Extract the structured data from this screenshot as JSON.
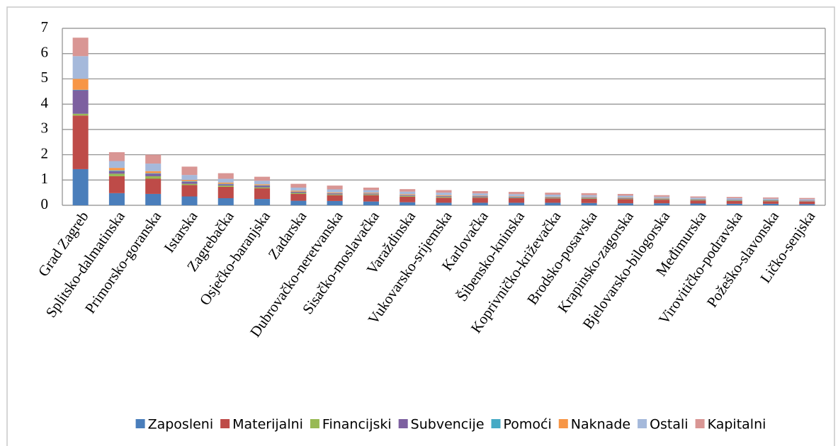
{
  "chart_data": {
    "type": "stacked-bar",
    "categories": [
      "Grad Zagreb",
      "Splitsko-dalmatinska",
      "Primorsko-goranska",
      "Istarska",
      "Zagrebačka",
      "Osječko-baranjska",
      "Zadarska",
      "Dubrovačko-neretvanska",
      "Sisačko-moslavačka",
      "Varaždinska",
      "Vukovarsko-srijemska",
      "Karlovačka",
      "Šibensko-kninska",
      "Koprivničko-križevačka",
      "Brodsko-posavska",
      "Krapinsko-zagorska",
      "Bjelovarsko-bilogorska",
      "Međimurska",
      "Virovitičko-podravska",
      "Požeško-slavonska",
      "Ličko-senjska"
    ],
    "series": [
      {
        "name": "Zaposleni",
        "color": "#4a7ebb",
        "values": [
          1.43,
          0.48,
          0.45,
          0.35,
          0.28,
          0.25,
          0.18,
          0.17,
          0.15,
          0.12,
          0.1,
          0.1,
          0.1,
          0.1,
          0.09,
          0.08,
          0.08,
          0.07,
          0.06,
          0.06,
          0.05
        ]
      },
      {
        "name": "Materijalni",
        "color": "#be4b48",
        "values": [
          2.12,
          0.67,
          0.6,
          0.45,
          0.45,
          0.42,
          0.27,
          0.23,
          0.25,
          0.22,
          0.2,
          0.2,
          0.18,
          0.17,
          0.17,
          0.16,
          0.14,
          0.12,
          0.11,
          0.1,
          0.1
        ]
      },
      {
        "name": "Financijski",
        "color": "#98b954",
        "values": [
          0.07,
          0.1,
          0.1,
          0.05,
          0.05,
          0.04,
          0.04,
          0.03,
          0.03,
          0.03,
          0.03,
          0.02,
          0.02,
          0.02,
          0.02,
          0.02,
          0.02,
          0.02,
          0.02,
          0.02,
          0.01
        ]
      },
      {
        "name": "Subvencije",
        "color": "#7d60a0",
        "values": [
          0.93,
          0.1,
          0.1,
          0.08,
          0.05,
          0.06,
          0.04,
          0.04,
          0.03,
          0.03,
          0.03,
          0.03,
          0.03,
          0.02,
          0.02,
          0.02,
          0.02,
          0.02,
          0.02,
          0.02,
          0.02
        ]
      },
      {
        "name": "Pomoći",
        "color": "#46aac5",
        "values": [
          0.02,
          0.03,
          0.02,
          0.02,
          0.02,
          0.02,
          0.01,
          0.01,
          0.01,
          0.01,
          0.01,
          0.01,
          0.01,
          0.01,
          0.01,
          0.01,
          0.01,
          0.01,
          0.01,
          0.01,
          0.01
        ]
      },
      {
        "name": "Naknade",
        "color": "#f79646",
        "values": [
          0.43,
          0.1,
          0.08,
          0.05,
          0.05,
          0.04,
          0.04,
          0.03,
          0.03,
          0.03,
          0.03,
          0.02,
          0.02,
          0.02,
          0.02,
          0.02,
          0.02,
          0.01,
          0.01,
          0.01,
          0.01
        ]
      },
      {
        "name": "Ostali",
        "color": "#a5b9db",
        "values": [
          0.9,
          0.27,
          0.3,
          0.2,
          0.15,
          0.14,
          0.12,
          0.12,
          0.1,
          0.1,
          0.1,
          0.09,
          0.08,
          0.08,
          0.07,
          0.07,
          0.05,
          0.05,
          0.05,
          0.04,
          0.04
        ]
      },
      {
        "name": "Kapitalni",
        "color": "#d99694",
        "values": [
          0.73,
          0.35,
          0.35,
          0.33,
          0.22,
          0.16,
          0.15,
          0.15,
          0.1,
          0.1,
          0.1,
          0.09,
          0.09,
          0.08,
          0.08,
          0.07,
          0.06,
          0.05,
          0.05,
          0.05,
          0.05
        ]
      }
    ],
    "ylim": [
      0,
      7
    ],
    "yticks": [
      0,
      1,
      2,
      3,
      4,
      5,
      6,
      7
    ],
    "grid": true,
    "legend": "bottom"
  }
}
